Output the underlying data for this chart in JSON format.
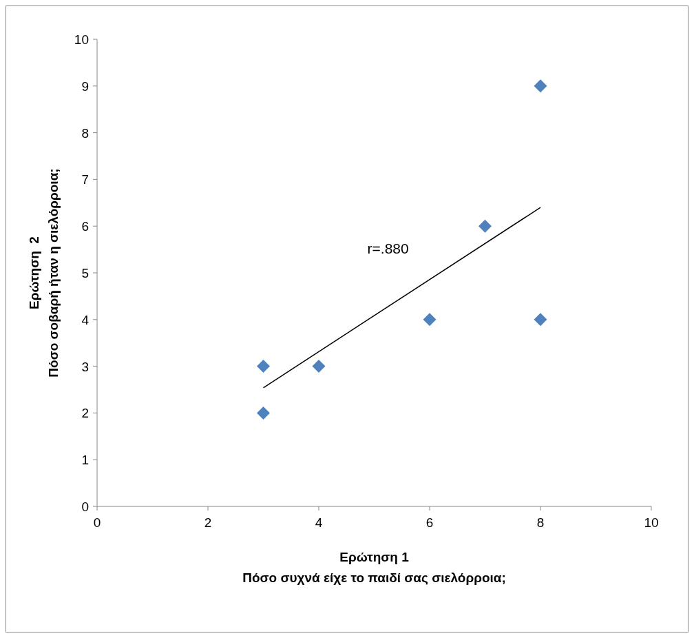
{
  "chart_data": {
    "type": "scatter",
    "xlabel": "Ερώτηση 1\nΠόσο συχνά είχε το παιδί σας σιελόρροια;",
    "ylabel": "Ερώτηση  2\nΠόσο σοβαρή ήταν η σιελόρροια;",
    "xlim": [
      0,
      10
    ],
    "ylim": [
      0,
      10
    ],
    "xticks": [
      0,
      2,
      4,
      6,
      8,
      10
    ],
    "yticks": [
      0,
      1,
      2,
      3,
      4,
      5,
      6,
      7,
      8,
      9,
      10
    ],
    "grid": false,
    "marker": "diamond",
    "series": [
      {
        "color": "#4f81bd",
        "x": [
          3,
          3,
          4,
          6,
          7,
          8,
          8
        ],
        "values": [
          3,
          2,
          3,
          4,
          6,
          9,
          4
        ]
      },
      {
        "type": "line",
        "color": "#000000",
        "x": [
          3,
          8
        ],
        "values": [
          2.54,
          6.4
        ],
        "marker": "none",
        "line_style": "solid"
      }
    ],
    "annotations": [
      "r=.880"
    ]
  }
}
